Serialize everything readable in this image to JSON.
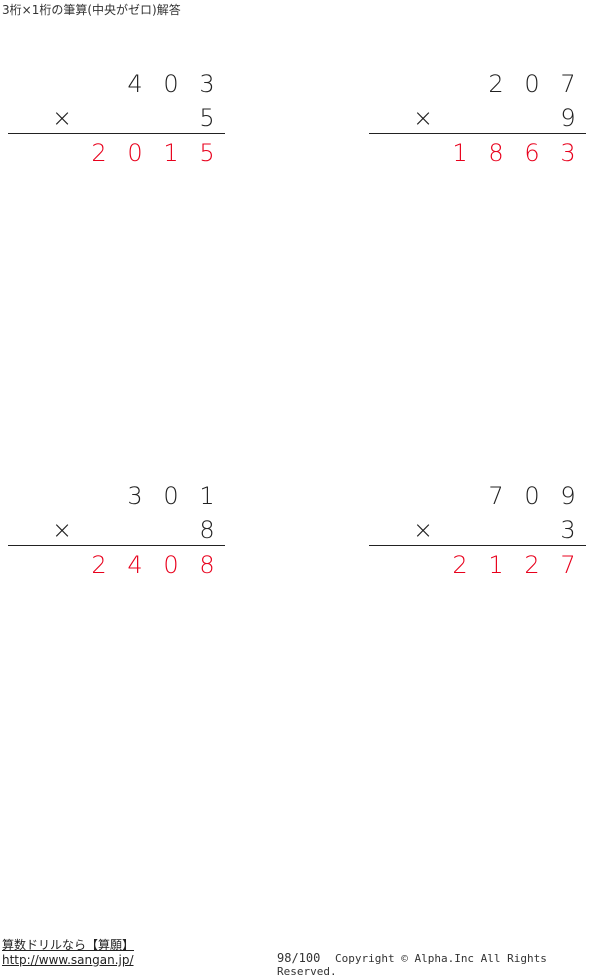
{
  "title": "3桁×1桁の筆算(中央がゼロ)解答",
  "problems": [
    {
      "top": [
        "4",
        "0",
        "3"
      ],
      "multiplier": "5",
      "op": "×",
      "answer": [
        "2",
        "0",
        "1",
        "5"
      ]
    },
    {
      "top": [
        "2",
        "0",
        "7"
      ],
      "multiplier": "9",
      "op": "×",
      "answer": [
        "1",
        "8",
        "6",
        "3"
      ]
    },
    {
      "top": [
        "3",
        "0",
        "1"
      ],
      "multiplier": "8",
      "op": "×",
      "answer": [
        "2",
        "4",
        "0",
        "8"
      ]
    },
    {
      "top": [
        "7",
        "0",
        "9"
      ],
      "multiplier": "3",
      "op": "×",
      "answer": [
        "2",
        "1",
        "2",
        "7"
      ]
    }
  ],
  "answer_color": "#e8001c",
  "footer": {
    "site_name": "算数ドリルなら【算願】",
    "url": "http://www.sangan.jp/",
    "page": "98/100",
    "copyright": "Copyright © Alpha.Inc All Rights Reserved."
  }
}
